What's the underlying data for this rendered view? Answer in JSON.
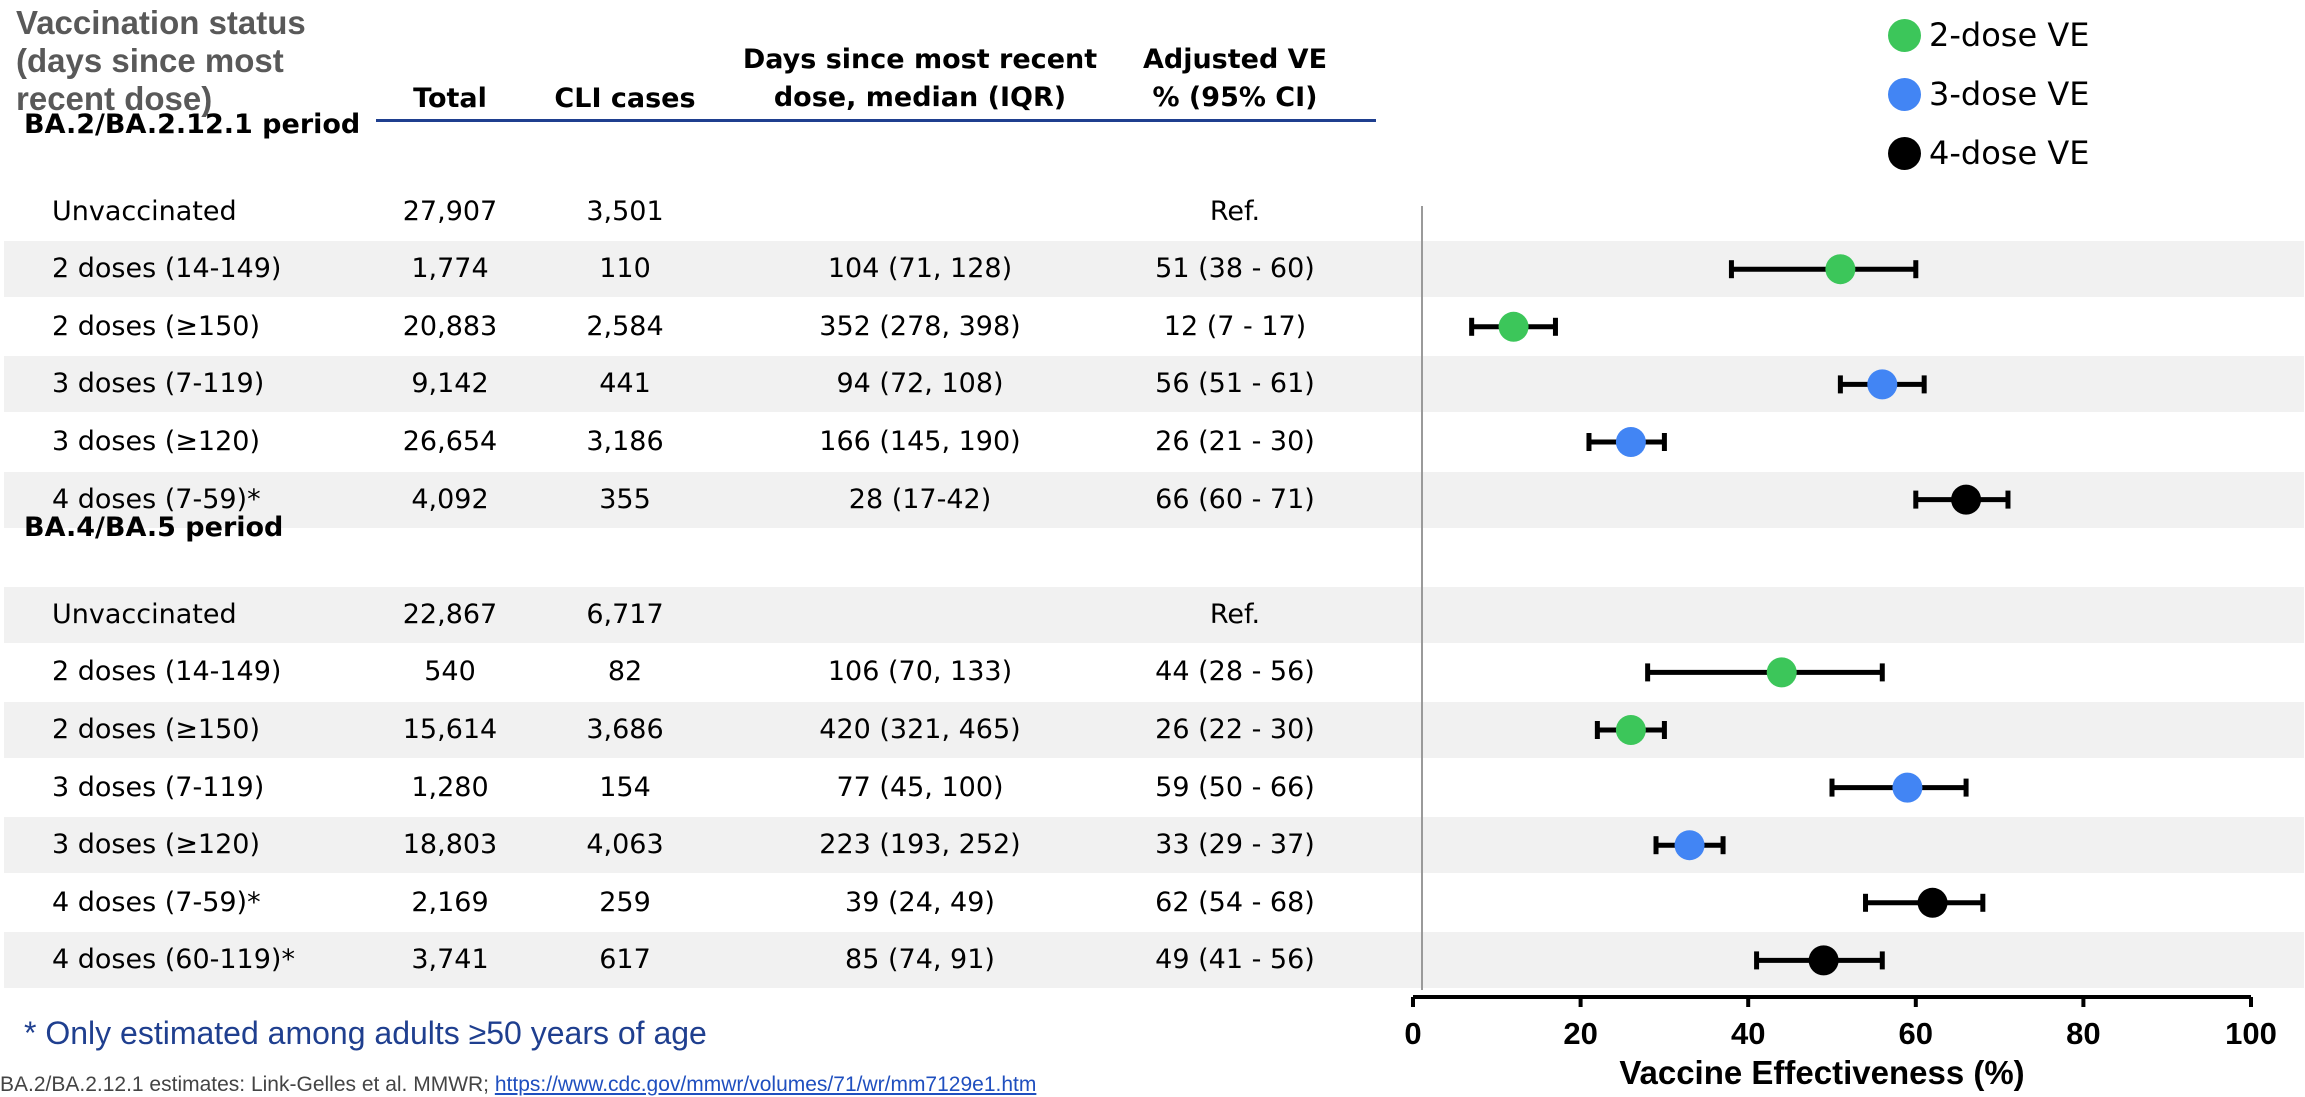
{
  "header": {
    "vaccination_status": "Vaccination status (days since most recent dose)",
    "total": "Total",
    "cli_cases": "CLI cases",
    "days_since_l1": "Days since most recent",
    "days_since_l2": "dose, median (IQR)",
    "adjusted_ve_l1": "Adjusted VE",
    "adjusted_ve_l2": "% (95% CI)"
  },
  "rows": [
    {
      "kind": "period",
      "label": "BA.2/BA.2.12.1 period"
    },
    {
      "kind": "data",
      "status": "Unvaccinated",
      "total": "27,907",
      "cli": "3,501",
      "days": "",
      "ve": "Ref."
    },
    {
      "kind": "data",
      "status": "2 doses (14-149)",
      "total": "1,774",
      "cli": "110",
      "days": "104 (71, 128)",
      "ve": "51 (38 - 60)"
    },
    {
      "kind": "data",
      "status": "2 doses (≥150)",
      "total": "20,883",
      "cli": "2,584",
      "days": "352 (278, 398)",
      "ve": "12 (7 - 17)"
    },
    {
      "kind": "data",
      "status": "3 doses (7-119)",
      "total": "9,142",
      "cli": "441",
      "days": "94 (72, 108)",
      "ve": "56 (51 - 61)"
    },
    {
      "kind": "data",
      "status": "3 doses (≥120)",
      "total": "26,654",
      "cli": "3,186",
      "days": "166 (145, 190)",
      "ve": "26 (21 - 30)"
    },
    {
      "kind": "data",
      "status": "4 doses (7-59)*",
      "total": "4,092",
      "cli": "355",
      "days": "28 (17-42)",
      "ve": "66 (60 - 71)"
    },
    {
      "kind": "period",
      "label": "BA.4/BA.5 period"
    },
    {
      "kind": "data",
      "status": "Unvaccinated",
      "total": "22,867",
      "cli": "6,717",
      "days": "",
      "ve": "Ref."
    },
    {
      "kind": "data",
      "status": "2 doses (14-149)",
      "total": "540",
      "cli": "82",
      "days": "106 (70, 133)",
      "ve": "44 (28 - 56)"
    },
    {
      "kind": "data",
      "status": "2 doses (≥150)",
      "total": "15,614",
      "cli": "3,686",
      "days": "420 (321, 465)",
      "ve": "26 (22 - 30)"
    },
    {
      "kind": "data",
      "status": "3 doses (7-119)",
      "total": "1,280",
      "cli": "154",
      "days": "77 (45, 100)",
      "ve": "59 (50 - 66)"
    },
    {
      "kind": "data",
      "status": "3 doses (≥120)",
      "total": "18,803",
      "cli": "4,063",
      "days": "223 (193, 252)",
      "ve": "33 (29 - 37)"
    },
    {
      "kind": "data",
      "status": "4 doses (7-59)*",
      "total": "2,169",
      "cli": "259",
      "days": "39 (24, 49)",
      "ve": "62 (54 - 68)"
    },
    {
      "kind": "data",
      "status": "4 doses (60-119)*",
      "total": "3,741",
      "cli": "617",
      "days": "85 (74, 91)",
      "ve": "49 (41 - 56)"
    }
  ],
  "legend": [
    {
      "label": "2-dose VE",
      "color": "#3cc65a"
    },
    {
      "label": "3-dose VE",
      "color": "#4285f4"
    },
    {
      "label": "4-dose VE",
      "color": "#000000"
    }
  ],
  "footnote": "* Only estimated among adults ≥50 years of age",
  "source": {
    "text": "BA.2/BA.2.12.1 estimates: Link-Gelles et al. MMWR; ",
    "link": "https://www.cdc.gov/mmwr/volumes/71/wr/mm7129e1.htm"
  },
  "chart_data": {
    "type": "forest",
    "xlabel": "Vaccine Effectiveness (%)",
    "xlim": [
      0,
      100
    ],
    "xticks": [
      0,
      20,
      40,
      60,
      80,
      100
    ],
    "grid": false,
    "legend_position": "top-right",
    "points": [
      {
        "row": 2,
        "series": "2-dose VE",
        "value": 51,
        "low": 38,
        "high": 60
      },
      {
        "row": 3,
        "series": "2-dose VE",
        "value": 12,
        "low": 7,
        "high": 17
      },
      {
        "row": 4,
        "series": "3-dose VE",
        "value": 56,
        "low": 51,
        "high": 61
      },
      {
        "row": 5,
        "series": "3-dose VE",
        "value": 26,
        "low": 21,
        "high": 30
      },
      {
        "row": 6,
        "series": "4-dose VE",
        "value": 66,
        "low": 60,
        "high": 71
      },
      {
        "row": 9,
        "series": "2-dose VE",
        "value": 44,
        "low": 28,
        "high": 56
      },
      {
        "row": 10,
        "series": "2-dose VE",
        "value": 26,
        "low": 22,
        "high": 30
      },
      {
        "row": 11,
        "series": "3-dose VE",
        "value": 59,
        "low": 50,
        "high": 66
      },
      {
        "row": 12,
        "series": "3-dose VE",
        "value": 33,
        "low": 29,
        "high": 37
      },
      {
        "row": 13,
        "series": "4-dose VE",
        "value": 62,
        "low": 54,
        "high": 68
      },
      {
        "row": 14,
        "series": "4-dose VE",
        "value": 49,
        "low": 41,
        "high": 56
      }
    ]
  }
}
